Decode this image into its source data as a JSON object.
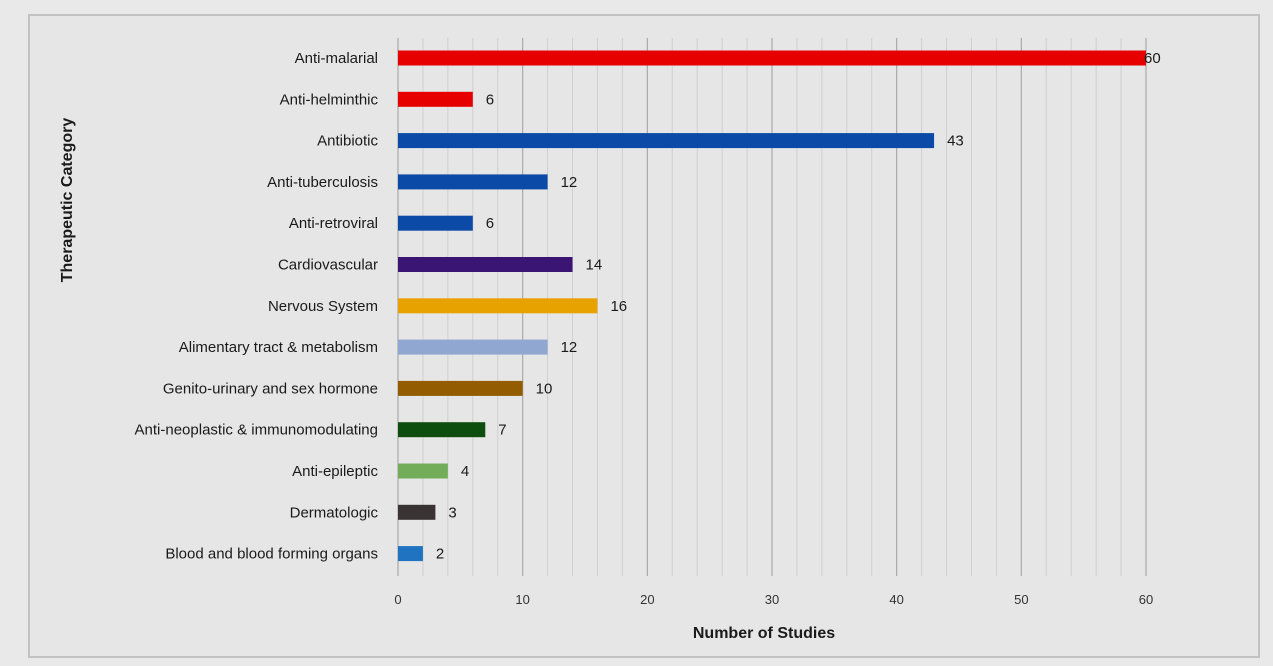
{
  "chart_data": {
    "type": "bar",
    "orientation": "horizontal",
    "title": "",
    "xlabel": "Number of Studies",
    "ylabel": "Therapeutic Category",
    "xlim": [
      0,
      60
    ],
    "xticks": [
      0,
      10,
      20,
      30,
      40,
      50,
      60
    ],
    "grid": true,
    "legend": "none",
    "categories": [
      "Anti-malarial",
      "Anti-helminthic",
      "Antibiotic",
      "Anti-tuberculosis",
      "Anti-retroviral",
      "Cardiovascular",
      "Nervous System",
      "Alimentary tract & metabolism",
      "Genito-urinary and sex hormone",
      "Anti-neoplastic & immunomodulating",
      "Anti-epileptic",
      "Dermatologic",
      "Blood and blood forming organs"
    ],
    "values": [
      60,
      6,
      43,
      12,
      6,
      14,
      16,
      12,
      10,
      7,
      4,
      3,
      2
    ],
    "colors": [
      "#e60000",
      "#e60000",
      "#0b4aa6",
      "#0b4aa6",
      "#0b4aa6",
      "#3a1573",
      "#e8a200",
      "#8fa7d1",
      "#935c00",
      "#0d4d0d",
      "#74ad5a",
      "#3a3334",
      "#1f73c0"
    ]
  }
}
